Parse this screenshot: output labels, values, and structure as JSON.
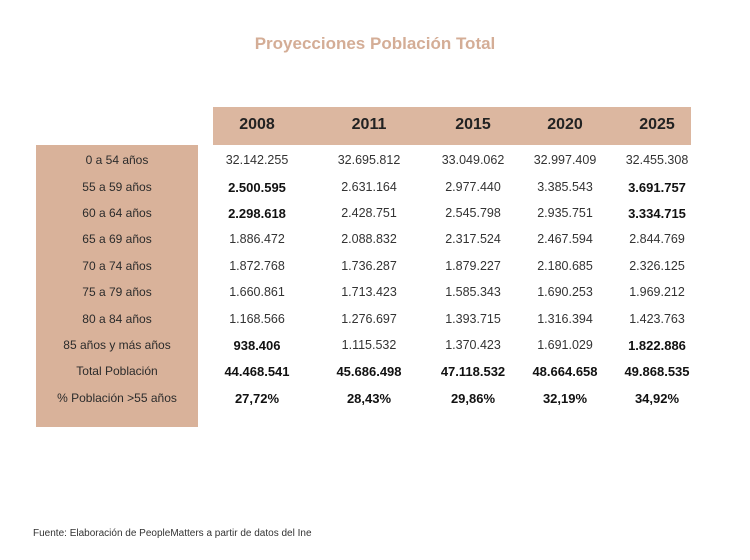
{
  "title": "Proyecciones Población Total",
  "years": [
    "2008",
    "2011",
    "2015",
    "2020",
    "2025"
  ],
  "rows": [
    {
      "label": "0 a 54 años",
      "values": [
        "32.142.255",
        "32.695.812",
        "33.049.062",
        "32.997.409",
        "32.455.308"
      ],
      "bold": [
        false,
        false,
        false,
        false,
        false
      ]
    },
    {
      "label": "55 a 59 años",
      "values": [
        "2.500.595",
        "2.631.164",
        "2.977.440",
        "3.385.543",
        "3.691.757"
      ],
      "bold": [
        true,
        false,
        false,
        false,
        true
      ]
    },
    {
      "label": "60 a 64 años",
      "values": [
        "2.298.618",
        "2.428.751",
        "2.545.798",
        "2.935.751",
        "3.334.715"
      ],
      "bold": [
        true,
        false,
        false,
        false,
        true
      ]
    },
    {
      "label": "65 a 69 años",
      "values": [
        "1.886.472",
        "2.088.832",
        "2.317.524",
        "2.467.594",
        "2.844.769"
      ],
      "bold": [
        false,
        false,
        false,
        false,
        false
      ]
    },
    {
      "label": "70 a 74 años",
      "values": [
        "1.872.768",
        "1.736.287",
        "1.879.227",
        "2.180.685",
        "2.326.125"
      ],
      "bold": [
        false,
        false,
        false,
        false,
        false
      ]
    },
    {
      "label": "75 a 79 años",
      "values": [
        "1.660.861",
        "1.713.423",
        "1.585.343",
        "1.690.253",
        "1.969.212"
      ],
      "bold": [
        false,
        false,
        false,
        false,
        false
      ]
    },
    {
      "label": "80 a 84 años",
      "values": [
        "1.168.566",
        "1.276.697",
        "1.393.715",
        "1.316.394",
        "1.423.763"
      ],
      "bold": [
        false,
        false,
        false,
        false,
        false
      ]
    },
    {
      "label": "85 años y más años",
      "values": [
        "938.406",
        "1.115.532",
        "1.370.423",
        "1.691.029",
        "1.822.886"
      ],
      "bold": [
        true,
        false,
        false,
        false,
        true
      ]
    },
    {
      "label": "Total Población",
      "values": [
        "44.468.541",
        "45.686.498",
        "47.118.532",
        "48.664.658",
        "49.868.535"
      ],
      "bold": [
        true,
        true,
        true,
        true,
        true
      ]
    },
    {
      "label": "% Población >55 años",
      "values": [
        "27,72%",
        "28,43%",
        "29,86%",
        "32,19%",
        "34,92%"
      ],
      "bold": [
        true,
        true,
        true,
        true,
        true
      ]
    }
  ],
  "footer": "Fuente: Elaboración de PeopleMatters a partir de datos del Ine",
  "colors": {
    "accent": "#dcb7a0",
    "title": "#d4ad96"
  }
}
